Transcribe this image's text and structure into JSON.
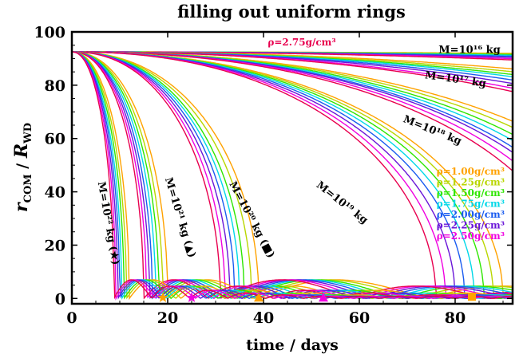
{
  "chart_data": {
    "type": "line",
    "title": "filling out uniform rings",
    "xlabel": "time / days",
    "ylabel_main": "r",
    "ylabel_main_sub": "COM",
    "ylabel_sep": " / ",
    "ylabel_den": "R",
    "ylabel_den_sub": "WD",
    "xlim": [
      0,
      92
    ],
    "ylim": [
      -2,
      100
    ],
    "xticks": [
      0,
      20,
      40,
      60,
      80
    ],
    "yticks": [
      0,
      20,
      40,
      60,
      80,
      100
    ],
    "xtick_labels": [
      "0",
      "20",
      "40",
      "60",
      "80"
    ],
    "ytick_labels": [
      "0",
      "20",
      "40",
      "60",
      "80",
      "100"
    ],
    "top_density_label": "ρ=2.75g/cm³",
    "top_density_color": "#e8004f",
    "legend_position": "right",
    "legend": [
      {
        "label": "ρ=1.00g/cm³",
        "color": "#ffa200"
      },
      {
        "label": "ρ=1.25g/cm³",
        "color": "#b9d600"
      },
      {
        "label": "ρ=1.50g/cm³",
        "color": "#2ee600"
      },
      {
        "label": "ρ=1.75g/cm³",
        "color": "#00d8e8"
      },
      {
        "label": "ρ=2.00g/cm³",
        "color": "#1a5cf0"
      },
      {
        "label": "ρ=2.25g/cm³",
        "color": "#6a16d8"
      },
      {
        "label": "ρ=2.50g/cm³",
        "color": "#f000e0"
      }
    ],
    "mass_labels": [
      {
        "text": "M=10¹⁶ kg",
        "x": 83,
        "y": 92,
        "angle": 0
      },
      {
        "text": "M=10¹⁷ kg",
        "x": 80,
        "y": 81,
        "angle": 8
      },
      {
        "text": "M=10¹⁸ kg",
        "x": 75,
        "y": 62,
        "angle": 22
      },
      {
        "text": "M=10¹⁹ kg",
        "x": 56,
        "y": 35,
        "angle": 38
      },
      {
        "text": "M=10²⁰ kg (■)",
        "x": 37,
        "y": 29,
        "angle": 62
      },
      {
        "text": "M=10²¹ kg (▲)",
        "x": 22,
        "y": 30,
        "angle": 73
      },
      {
        "text": "M=10²² kg (★)",
        "x": 7,
        "y": 28,
        "angle": 80
      }
    ],
    "series_groups": [
      {
        "mass": "1e16",
        "r0": 92.5,
        "t_fall": [
          700,
          600,
          520,
          470,
          420,
          380,
          345,
          320
        ]
      },
      {
        "mass": "1e17",
        "r0": 92.5,
        "t_fall": [
          230,
          215,
          203,
          195,
          185,
          176,
          166,
          160
        ]
      },
      {
        "mass": "1e18",
        "r0": 92.5,
        "t_fall": [
          128,
          124,
          120,
          117,
          114,
          112,
          109,
          106
        ]
      },
      {
        "mass": "1e19",
        "r0": 92.5,
        "t_fall": [
          90,
          88,
          86,
          84,
          82,
          80,
          78,
          76
        ]
      },
      {
        "mass": "1e20",
        "r0": 92.5,
        "t_fall": [
          39,
          37.5,
          36,
          35,
          34,
          33,
          32,
          31
        ]
      },
      {
        "mass": "1e21",
        "r0": 92.5,
        "t_fall": [
          20,
          19,
          18.2,
          17.5,
          16.8,
          16.2,
          15.6,
          15.0
        ]
      },
      {
        "mass": "1e22",
        "r0": 92.5,
        "t_fall": [
          12.0,
          11.4,
          10.9,
          10.4,
          10.0,
          9.6,
          9.2,
          8.8
        ]
      }
    ],
    "series_colors": [
      "#ffa200",
      "#b9d600",
      "#2ee600",
      "#00d8e8",
      "#1a5cf0",
      "#6a16d8",
      "#f000e0",
      "#e8004f"
    ],
    "markers": [
      {
        "symbol": "star",
        "x": 19,
        "y": 0.3,
        "color": "#ffa200"
      },
      {
        "symbol": "star",
        "x": 25,
        "y": 0.3,
        "color": "#f000e0"
      },
      {
        "symbol": "triangle",
        "x": 39,
        "y": 0.3,
        "color": "#ffa200"
      },
      {
        "symbol": "triangle",
        "x": 52.5,
        "y": 0.3,
        "color": "#f000e0"
      },
      {
        "symbol": "square",
        "x": 83.5,
        "y": 0.6,
        "color": "#ffa200"
      }
    ]
  }
}
